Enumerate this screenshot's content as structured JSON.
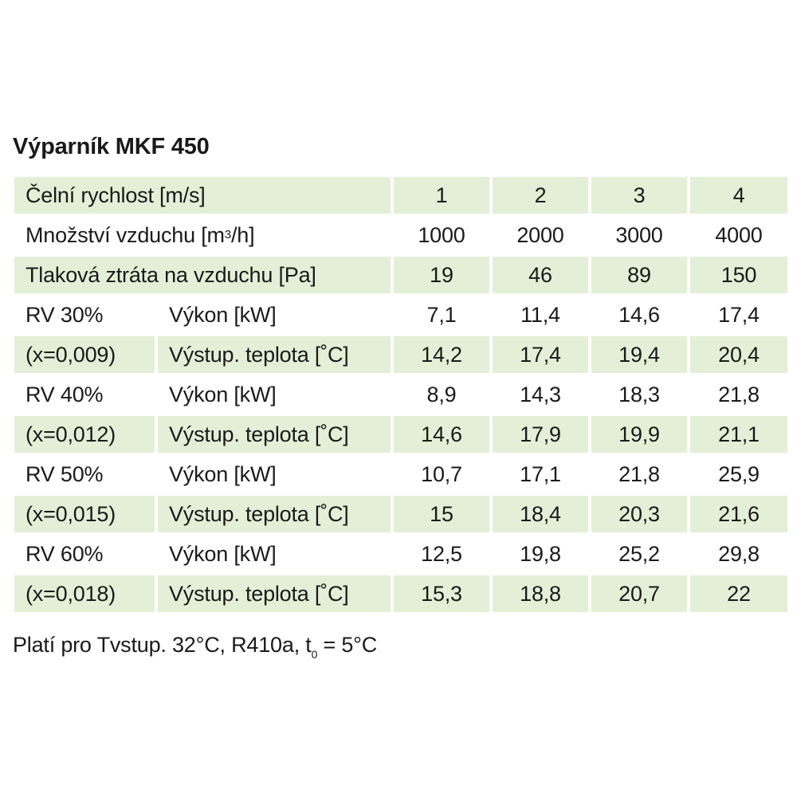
{
  "title": "Výparník MKF 450",
  "header_rows": [
    {
      "label": "Čelní rychlost [m/s]",
      "values": [
        "1",
        "2",
        "3",
        "4"
      ],
      "shaded": true
    },
    {
      "label_pre": "Množství vzduchu [m",
      "label_sup": "3",
      "label_post": "/h]",
      "values": [
        "1000",
        "2000",
        "3000",
        "4000"
      ],
      "shaded": false
    },
    {
      "label": "Tlaková ztráta na vzduchu [Pa]",
      "values": [
        "19",
        "46",
        "89",
        "150"
      ],
      "shaded": true
    }
  ],
  "data_rows": [
    {
      "group": "RV 30%",
      "param": "Výkon [kW]",
      "values": [
        "7,1",
        "11,4",
        "14,6",
        "17,4"
      ],
      "shaded": false
    },
    {
      "group": "(x=0,009)",
      "param": "Výstup. teplota [˚C]",
      "values": [
        "14,2",
        "17,4",
        "19,4",
        "20,4"
      ],
      "shaded": true
    },
    {
      "group": "RV 40%",
      "param": "Výkon [kW]",
      "values": [
        "8,9",
        "14,3",
        "18,3",
        "21,8"
      ],
      "shaded": false
    },
    {
      "group": "(x=0,012)",
      "param": "Výstup. teplota [˚C]",
      "values": [
        "14,6",
        "17,9",
        "19,9",
        "21,1"
      ],
      "shaded": true
    },
    {
      "group": "RV 50%",
      "param": "Výkon [kW]",
      "values": [
        "10,7",
        "17,1",
        "21,8",
        "25,9"
      ],
      "shaded": false
    },
    {
      "group": "(x=0,015)",
      "param": "Výstup. teplota [˚C]",
      "values": [
        "15",
        "18,4",
        "20,3",
        "21,6"
      ],
      "shaded": true
    },
    {
      "group": "RV 60%",
      "param": "Výkon [kW]",
      "values": [
        "12,5",
        "19,8",
        "25,2",
        "29,8"
      ],
      "shaded": false
    },
    {
      "group": "(x=0,018)",
      "param": "Výstup. teplota [˚C]",
      "values": [
        "15,3",
        "18,8",
        "20,7",
        "22"
      ],
      "shaded": true
    }
  ],
  "footer": {
    "pre": "Platí pro Tvstup. 32°C, R410a, t",
    "sub": "0",
    "post": " = 5°C"
  },
  "colors": {
    "row_shade": "#e3efd7",
    "text": "#1a1a1a"
  }
}
